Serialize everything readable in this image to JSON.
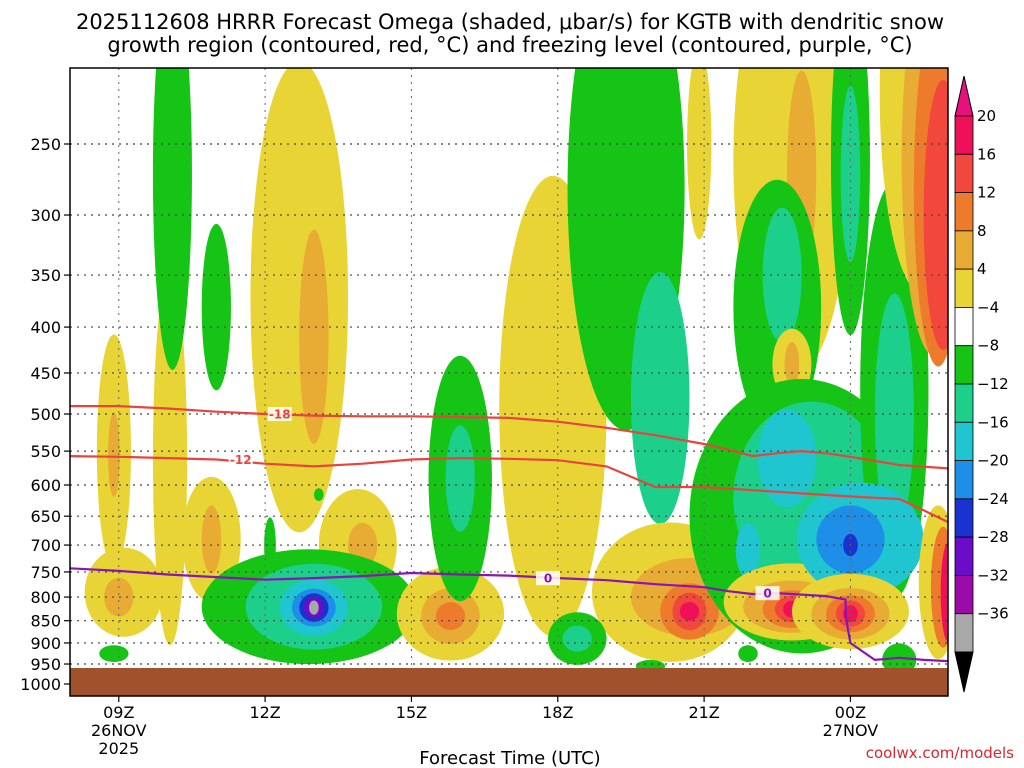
{
  "chart_data": {
    "type": "heatmap",
    "title_line1": "2025112608 HRRR Forecast Omega (shaded, μbar/s) for KGTB with dendritic snow",
    "title_line2": "growth region (contoured, red, °C) and freezing level (contoured, purple, °C)",
    "xlabel": "Forecast Time (UTC)",
    "credit": "coolwx.com/models",
    "x_hours": [
      8,
      26
    ],
    "y_range_hpa": [
      1000,
      200
    ],
    "y_ticks": [
      250,
      300,
      350,
      400,
      450,
      500,
      550,
      600,
      650,
      700,
      750,
      800,
      850,
      900,
      950,
      1000
    ],
    "x_ticks": [
      {
        "hour": 9,
        "label": "09Z",
        "date": "26NOV",
        "year": "2025"
      },
      {
        "hour": 12,
        "label": "12Z"
      },
      {
        "hour": 15,
        "label": "15Z"
      },
      {
        "hour": 18,
        "label": "18Z"
      },
      {
        "hour": 21,
        "label": "21Z"
      },
      {
        "hour": 24,
        "label": "00Z",
        "date": "27NOV"
      }
    ],
    "colorbar": {
      "labels": [
        "20",
        "16",
        "12",
        "8",
        "4",
        "−4",
        "−8",
        "−12",
        "−16",
        "−20",
        "−24",
        "−28",
        "−32",
        "−36"
      ],
      "bins": [
        {
          "color": "#f0105a"
        },
        {
          "color": "#f2473c"
        },
        {
          "color": "#ee7b2c"
        },
        {
          "color": "#e8ab33"
        },
        {
          "color": "#e9d436"
        },
        {
          "color": "#ffffff"
        },
        {
          "color": "#16c416"
        },
        {
          "color": "#1ccf8a"
        },
        {
          "color": "#1fc6cf"
        },
        {
          "color": "#1d8fe8"
        },
        {
          "color": "#1a32d0"
        },
        {
          "color": "#6a0cc8"
        },
        {
          "color": "#9c0aa8"
        },
        {
          "color": "#a8a8a8"
        }
      ],
      "top_arrow_color": "#e8107c",
      "bottom_arrow_color": "#000000"
    },
    "contours": [
      {
        "name": "dgz-minus-18",
        "label": "-18",
        "color": "#e8443e",
        "points": [
          [
            8,
            490
          ],
          [
            9,
            490
          ],
          [
            10,
            493
          ],
          [
            11,
            497
          ],
          [
            12,
            500
          ],
          [
            13,
            502
          ],
          [
            14,
            503
          ],
          [
            15,
            503
          ],
          [
            16,
            504
          ],
          [
            17,
            505
          ],
          [
            18,
            510
          ],
          [
            19,
            518
          ],
          [
            20,
            528
          ],
          [
            21,
            540
          ],
          [
            21.5,
            548
          ],
          [
            22,
            557
          ],
          [
            22.5,
            553
          ],
          [
            23,
            550
          ],
          [
            23.5,
            553
          ],
          [
            24,
            558
          ],
          [
            25,
            570
          ],
          [
            26,
            575
          ]
        ]
      },
      {
        "name": "dgz-minus-12",
        "label": "-12",
        "color": "#e8443e",
        "points": [
          [
            8,
            557
          ],
          [
            9,
            558
          ],
          [
            10,
            560
          ],
          [
            11,
            562
          ],
          [
            12,
            568
          ],
          [
            13,
            572
          ],
          [
            14,
            568
          ],
          [
            15,
            562
          ],
          [
            16,
            560
          ],
          [
            17,
            561
          ],
          [
            18,
            563
          ],
          [
            19,
            572
          ],
          [
            20,
            603
          ],
          [
            21,
            603
          ],
          [
            22,
            608
          ],
          [
            23,
            613
          ],
          [
            24,
            618
          ],
          [
            24.5,
            620
          ],
          [
            25,
            622
          ],
          [
            25.5,
            640
          ],
          [
            26,
            660
          ]
        ]
      },
      {
        "name": "freezing-level",
        "label": "0",
        "color": "#8a14b4",
        "points": [
          [
            8,
            743
          ],
          [
            9,
            748
          ],
          [
            10,
            755
          ],
          [
            11,
            760
          ],
          [
            12,
            765
          ],
          [
            13,
            762
          ],
          [
            14,
            758
          ],
          [
            15,
            752
          ],
          [
            16,
            755
          ],
          [
            17,
            757
          ],
          [
            18,
            762
          ],
          [
            19,
            766
          ],
          [
            20,
            774
          ],
          [
            21,
            780
          ],
          [
            21.5,
            788
          ],
          [
            22,
            794
          ],
          [
            22.5,
            792
          ],
          [
            23,
            795
          ],
          [
            23.5,
            798
          ],
          [
            23.9,
            805
          ],
          [
            23.9,
            840
          ],
          [
            24,
            900
          ],
          [
            24.5,
            940
          ],
          [
            25,
            935
          ],
          [
            25.5,
            940
          ],
          [
            26,
            943
          ]
        ]
      }
    ],
    "omega_blobs": [
      {
        "h": 10.05,
        "p": 560,
        "rx": 0.35,
        "ry": 250,
        "c": "#e9d436"
      },
      {
        "h": 10.1,
        "p": 270,
        "rx": 0.4,
        "ry": 140,
        "c": "#16c416"
      },
      {
        "h": 11.0,
        "p": 380,
        "rx": 0.3,
        "ry": 80,
        "c": "#16c416"
      },
      {
        "h": 8.9,
        "p": 550,
        "rx": 0.35,
        "ry": 160,
        "c": "#e9d436"
      },
      {
        "h": 8.9,
        "p": 555,
        "rx": 0.12,
        "ry": 60,
        "c": "#e8ab33"
      },
      {
        "h": 9.1,
        "p": 790,
        "rx": 0.8,
        "ry": 90,
        "c": "#e9d436"
      },
      {
        "h": 9.0,
        "p": 800,
        "rx": 0.3,
        "ry": 40,
        "c": "#e8ab33"
      },
      {
        "h": 8.9,
        "p": 925,
        "rx": 0.3,
        "ry": 20,
        "c": "#16c416"
      },
      {
        "h": 10.9,
        "p": 690,
        "rx": 0.6,
        "ry": 110,
        "c": "#e9d436"
      },
      {
        "h": 10.9,
        "p": 690,
        "rx": 0.2,
        "ry": 60,
        "c": "#e8ab33"
      },
      {
        "h": 12.7,
        "p": 370,
        "rx": 1.0,
        "ry": 200,
        "c": "#e9d436"
      },
      {
        "h": 13.0,
        "p": 410,
        "rx": 0.3,
        "ry": 110,
        "c": "#e8ab33"
      },
      {
        "h": 12.1,
        "p": 700,
        "rx": 0.12,
        "ry": 50,
        "c": "#16c416"
      },
      {
        "h": 13.1,
        "p": 615,
        "rx": 0.1,
        "ry": 10,
        "c": "#16c416"
      },
      {
        "h": 13.9,
        "p": 700,
        "rx": 0.8,
        "ry": 100,
        "c": "#e9d436"
      },
      {
        "h": 14.0,
        "p": 700,
        "rx": 0.3,
        "ry": 40,
        "c": "#e8ab33"
      },
      {
        "h": 12.9,
        "p": 820,
        "rx": 2.2,
        "ry": 120,
        "c": "#16c416"
      },
      {
        "h": 13.0,
        "p": 820,
        "rx": 1.4,
        "ry": 90,
        "c": "#1ccf8a"
      },
      {
        "h": 13.0,
        "p": 822,
        "rx": 0.7,
        "ry": 60,
        "c": "#1fc6cf"
      },
      {
        "h": 13.0,
        "p": 822,
        "rx": 0.45,
        "ry": 40,
        "c": "#1d8fe8"
      },
      {
        "h": 13.0,
        "p": 822,
        "rx": 0.3,
        "ry": 30,
        "c": "#1a32d0"
      },
      {
        "h": 13.0,
        "p": 822,
        "rx": 0.2,
        "ry": 22,
        "c": "#6a0cc8"
      },
      {
        "h": 13.0,
        "p": 822,
        "rx": 0.1,
        "ry": 15,
        "c": "#a8a8a8"
      },
      {
        "h": 15.8,
        "p": 835,
        "rx": 1.1,
        "ry": 100,
        "c": "#e9d436"
      },
      {
        "h": 15.8,
        "p": 840,
        "rx": 0.6,
        "ry": 60,
        "c": "#e8ab33"
      },
      {
        "h": 15.8,
        "p": 840,
        "rx": 0.3,
        "ry": 30,
        "c": "#ee7b2c"
      },
      {
        "h": 16.0,
        "p": 590,
        "rx": 0.65,
        "ry": 180,
        "c": "#16c416"
      },
      {
        "h": 16.0,
        "p": 590,
        "rx": 0.3,
        "ry": 80,
        "c": "#1ccf8a"
      },
      {
        "h": 17.9,
        "p": 490,
        "rx": 1.1,
        "ry": 260,
        "c": "#e9d436"
      },
      {
        "h": 19.4,
        "p": 280,
        "rx": 1.2,
        "ry": 240,
        "c": "#16c416"
      },
      {
        "h": 20.1,
        "p": 480,
        "rx": 0.6,
        "ry": 150,
        "c": "#1ccf8a"
      },
      {
        "h": 20.3,
        "p": 790,
        "rx": 1.6,
        "ry": 140,
        "c": "#e9d436"
      },
      {
        "h": 20.7,
        "p": 800,
        "rx": 1.2,
        "ry": 80,
        "c": "#e8ab33"
      },
      {
        "h": 20.7,
        "p": 830,
        "rx": 0.6,
        "ry": 60,
        "c": "#ee7b2c"
      },
      {
        "h": 20.7,
        "p": 830,
        "rx": 0.35,
        "ry": 40,
        "c": "#f2473c"
      },
      {
        "h": 20.7,
        "p": 830,
        "rx": 0.2,
        "ry": 20,
        "c": "#f0105a"
      },
      {
        "h": 18.4,
        "p": 890,
        "rx": 0.6,
        "ry": 60,
        "c": "#16c416"
      },
      {
        "h": 18.4,
        "p": 890,
        "rx": 0.3,
        "ry": 30,
        "c": "#1ccf8a"
      },
      {
        "h": 20.9,
        "p": 250,
        "rx": 0.25,
        "ry": 60,
        "c": "#e9d436"
      },
      {
        "h": 22.8,
        "p": 260,
        "rx": 1.2,
        "ry": 200,
        "c": "#e9d436"
      },
      {
        "h": 23.0,
        "p": 270,
        "rx": 0.3,
        "ry": 70,
        "c": "#e8ab33"
      },
      {
        "h": 22.5,
        "p": 380,
        "rx": 0.9,
        "ry": 120,
        "c": "#16c416"
      },
      {
        "h": 22.6,
        "p": 350,
        "rx": 0.4,
        "ry": 60,
        "c": "#1ccf8a"
      },
      {
        "h": 22.8,
        "p": 440,
        "rx": 0.4,
        "ry": 40,
        "c": "#e9d436"
      },
      {
        "h": 22.8,
        "p": 440,
        "rx": 0.15,
        "ry": 25,
        "c": "#e8ab33"
      },
      {
        "h": 23.0,
        "p": 650,
        "rx": 2.3,
        "ry": 220,
        "c": "#16c416"
      },
      {
        "h": 23.2,
        "p": 620,
        "rx": 1.6,
        "ry": 150,
        "c": "#1ccf8a"
      },
      {
        "h": 22.7,
        "p": 560,
        "rx": 0.6,
        "ry": 70,
        "c": "#1fc6cf"
      },
      {
        "h": 21.9,
        "p": 710,
        "rx": 0.25,
        "ry": 50,
        "c": "#1fc6cf"
      },
      {
        "h": 22.8,
        "p": 810,
        "rx": 1.4,
        "ry": 80,
        "c": "#e9d436"
      },
      {
        "h": 22.8,
        "p": 820,
        "rx": 1.0,
        "ry": 55,
        "c": "#e8ab33"
      },
      {
        "h": 22.8,
        "p": 825,
        "rx": 0.6,
        "ry": 40,
        "c": "#ee7b2c"
      },
      {
        "h": 22.8,
        "p": 825,
        "rx": 0.35,
        "ry": 28,
        "c": "#f2473c"
      },
      {
        "h": 22.8,
        "p": 825,
        "rx": 0.18,
        "ry": 18,
        "c": "#f0105a"
      },
      {
        "h": 24.0,
        "p": 260,
        "rx": 0.4,
        "ry": 110,
        "c": "#16c416"
      },
      {
        "h": 24.0,
        "p": 270,
        "rx": 0.2,
        "ry": 60,
        "c": "#1ccf8a"
      },
      {
        "h": 24.9,
        "p": 470,
        "rx": 0.7,
        "ry": 230,
        "c": "#16c416"
      },
      {
        "h": 24.9,
        "p": 500,
        "rx": 0.4,
        "ry": 150,
        "c": "#1ccf8a"
      },
      {
        "h": 24.2,
        "p": 690,
        "rx": 1.3,
        "ry": 100,
        "c": "#1fc6cf"
      },
      {
        "h": 24.0,
        "p": 690,
        "rx": 0.7,
        "ry": 60,
        "c": "#1d8fe8"
      },
      {
        "h": 24.0,
        "p": 700,
        "rx": 0.15,
        "ry": 20,
        "c": "#1a32d0"
      },
      {
        "h": 25.5,
        "p": 220,
        "rx": 0.9,
        "ry": 200,
        "c": "#e9d436"
      },
      {
        "h": 25.7,
        "p": 260,
        "rx": 0.65,
        "ry": 150,
        "c": "#e8ab33"
      },
      {
        "h": 25.8,
        "p": 280,
        "rx": 0.5,
        "ry": 120,
        "c": "#ee7b2c"
      },
      {
        "h": 25.9,
        "p": 300,
        "rx": 0.4,
        "ry": 100,
        "c": "#f2473c"
      },
      {
        "h": 24.0,
        "p": 830,
        "rx": 1.2,
        "ry": 80,
        "c": "#e9d436"
      },
      {
        "h": 24.0,
        "p": 835,
        "rx": 0.8,
        "ry": 55,
        "c": "#e8ab33"
      },
      {
        "h": 24.0,
        "p": 835,
        "rx": 0.5,
        "ry": 40,
        "c": "#ee7b2c"
      },
      {
        "h": 24.0,
        "p": 835,
        "rx": 0.3,
        "ry": 28,
        "c": "#f2473c"
      },
      {
        "h": 24.0,
        "p": 835,
        "rx": 0.15,
        "ry": 18,
        "c": "#f0105a"
      },
      {
        "h": 25.8,
        "p": 770,
        "rx": 0.4,
        "ry": 150,
        "c": "#e9d436"
      },
      {
        "h": 25.9,
        "p": 780,
        "rx": 0.25,
        "ry": 120,
        "c": "#ee7b2c"
      },
      {
        "h": 26.0,
        "p": 790,
        "rx": 0.15,
        "ry": 100,
        "c": "#f0105a"
      },
      {
        "h": 25.0,
        "p": 940,
        "rx": 0.35,
        "ry": 40,
        "c": "#16c416"
      },
      {
        "h": 19.9,
        "p": 955,
        "rx": 0.3,
        "ry": 15,
        "c": "#16c416"
      },
      {
        "h": 21.9,
        "p": 925,
        "rx": 0.2,
        "ry": 20,
        "c": "#16c416"
      }
    ]
  }
}
